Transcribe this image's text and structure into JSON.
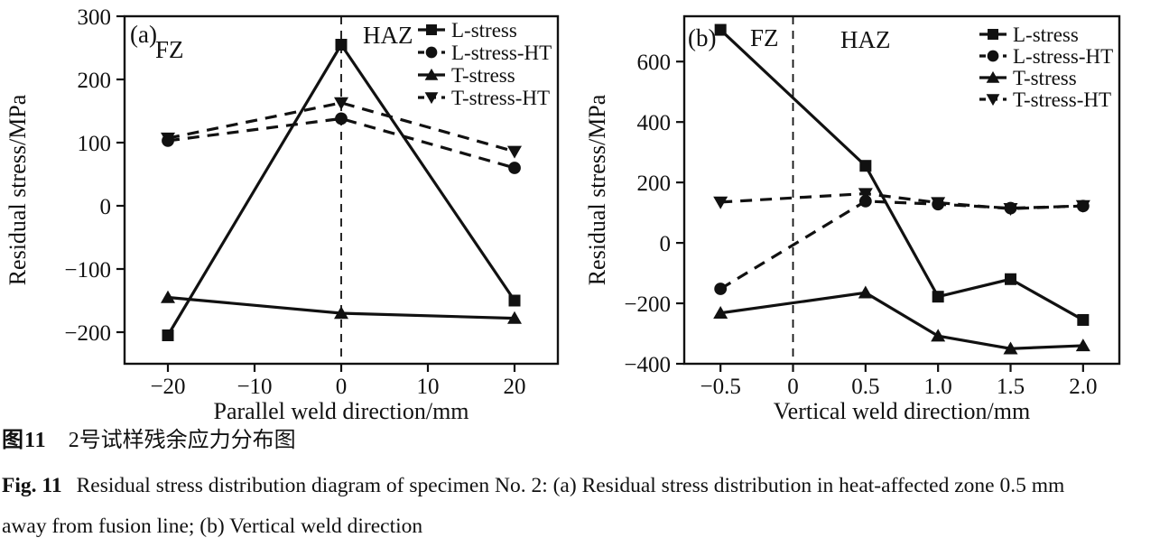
{
  "colors": {
    "ink": "#111111",
    "background": "#ffffff"
  },
  "caption": {
    "zh_label": "图11",
    "zh_text": "2号试样残余应力分布图",
    "en_label": "Fig. 11",
    "en_line1": "Residual stress distribution diagram of specimen No. 2: (a) Residual stress distribution in heat-affected zone 0.5 mm",
    "en_line2": "away from fusion line; (b) Vertical weld direction"
  },
  "chart_data": [
    {
      "type": "line",
      "panel_label": "(a)",
      "xlabel": "Parallel weld direction/mm",
      "ylabel": "Residual stress/MPa",
      "xlim": [
        -25,
        25
      ],
      "ylim": [
        -250,
        300
      ],
      "xticks": [
        -20,
        -10,
        0,
        10,
        20
      ],
      "xtick_labels": [
        "−20",
        "−10",
        "0",
        "10",
        "20"
      ],
      "yticks": [
        -200,
        -100,
        0,
        100,
        200,
        300
      ],
      "ytick_labels": [
        "−200",
        "−100",
        "0",
        "100",
        "200",
        "300"
      ],
      "grid": false,
      "vline_x": 0,
      "zone_left": "FZ",
      "zone_right": "HAZ",
      "legend_position": "top-right",
      "x": [
        -20,
        0,
        20
      ],
      "series": [
        {
          "name": "L-stress",
          "style": "solid",
          "marker": "square",
          "values": [
            -205,
            255,
            -150
          ]
        },
        {
          "name": "L-stress-HT",
          "style": "dashed",
          "marker": "circle",
          "values": [
            103,
            138,
            60
          ]
        },
        {
          "name": "T-stress",
          "style": "solid",
          "marker": "triangle-up",
          "values": [
            -145,
            -170,
            -178
          ]
        },
        {
          "name": "T-stress-HT",
          "style": "dashed",
          "marker": "triangle-down",
          "values": [
            107,
            163,
            86
          ]
        }
      ]
    },
    {
      "type": "line",
      "panel_label": "(b)",
      "xlabel": "Vertical weld direction/mm",
      "ylabel": "Residual stress/MPa",
      "xlim": [
        -0.75,
        2.25
      ],
      "ylim": [
        -400,
        750
      ],
      "xticks": [
        -0.5,
        0,
        0.5,
        1.0,
        1.5,
        2.0
      ],
      "xtick_labels": [
        "−0.5",
        "0",
        "0.5",
        "1.0",
        "1.5",
        "2.0"
      ],
      "yticks": [
        -400,
        -200,
        0,
        200,
        400,
        600
      ],
      "ytick_labels": [
        "−400",
        "−200",
        "0",
        "200",
        "400",
        "600"
      ],
      "grid": false,
      "vline_x": 0,
      "zone_left": "FZ",
      "zone_right": "HAZ",
      "legend_position": "top-right",
      "x": [
        -0.5,
        0.5,
        1.0,
        1.5,
        2.0
      ],
      "series": [
        {
          "name": "L-stress",
          "style": "solid",
          "marker": "square",
          "values": [
            705,
            255,
            -178,
            -120,
            -255
          ]
        },
        {
          "name": "L-stress-HT",
          "style": "dashed",
          "marker": "circle",
          "values": [
            -152,
            138,
            128,
            115,
            122
          ]
        },
        {
          "name": "T-stress",
          "style": "solid",
          "marker": "triangle-up",
          "values": [
            -232,
            -165,
            -308,
            -350,
            -340
          ]
        },
        {
          "name": "T-stress-HT",
          "style": "dashed",
          "marker": "triangle-down",
          "values": [
            135,
            163,
            133,
            113,
            123
          ]
        }
      ]
    }
  ]
}
